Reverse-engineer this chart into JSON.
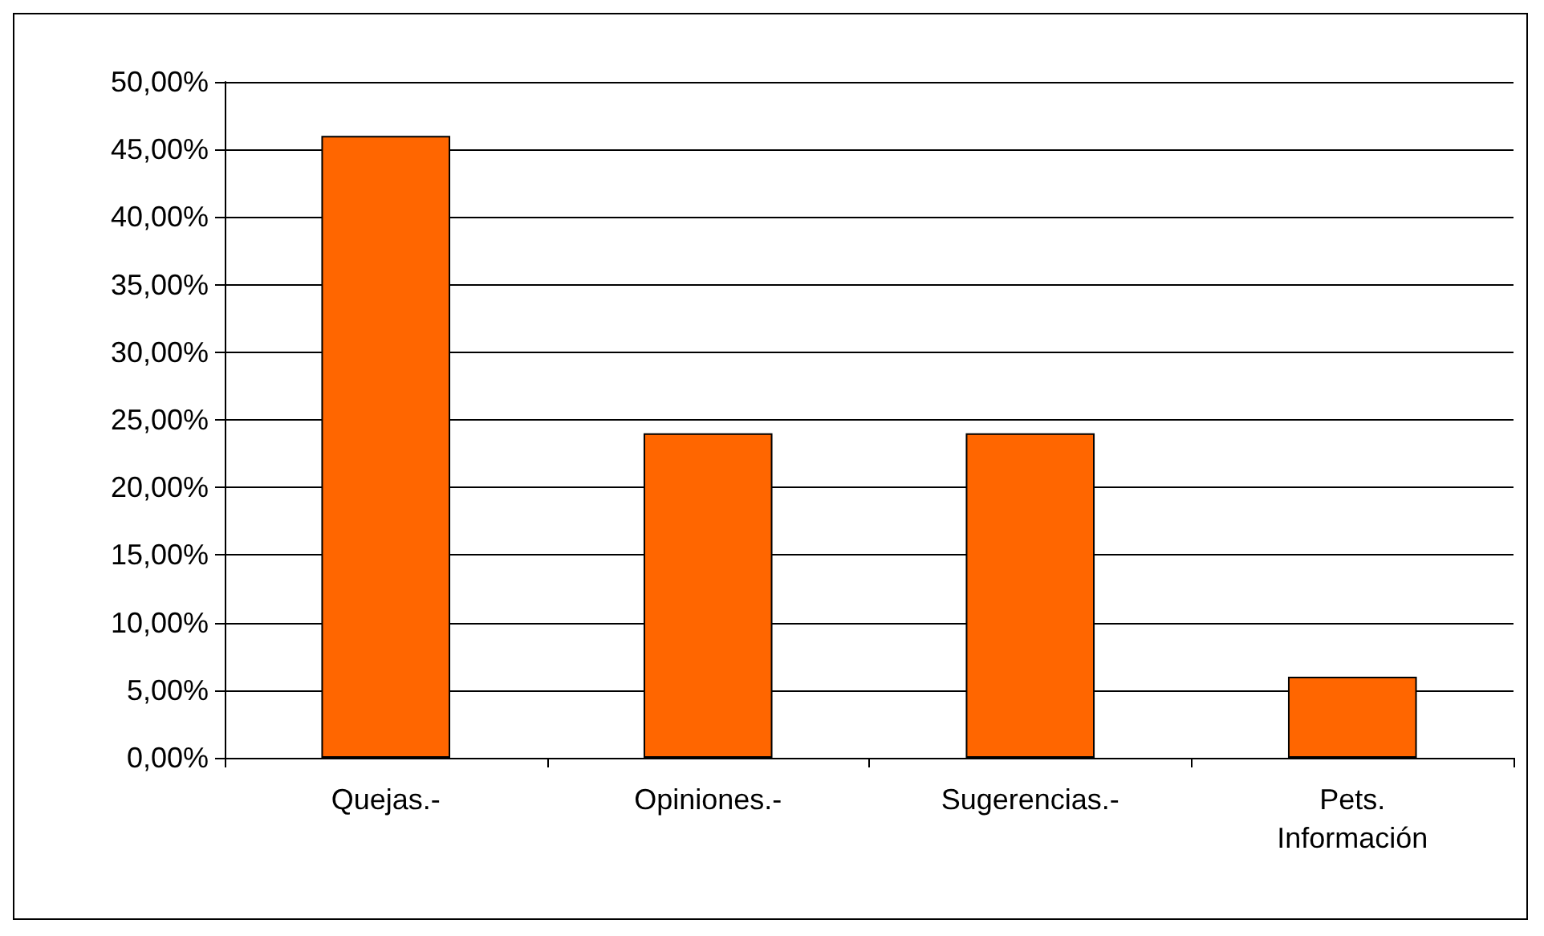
{
  "chart_data": {
    "type": "bar",
    "categories": [
      "Quejas.-",
      "Opiniones.-",
      "Sugerencias.-",
      "Pets.\nInformación"
    ],
    "values": [
      46,
      24,
      24,
      6
    ],
    "color": "#ff6600",
    "ylim": [
      0,
      50
    ],
    "yticks": [
      {
        "value": 0,
        "label": "0,00%"
      },
      {
        "value": 5,
        "label": "5,00%"
      },
      {
        "value": 10,
        "label": "10,00%"
      },
      {
        "value": 15,
        "label": "15,00%"
      },
      {
        "value": 20,
        "label": "20,00%"
      },
      {
        "value": 25,
        "label": "25,00%"
      },
      {
        "value": 30,
        "label": "30,00%"
      },
      {
        "value": 35,
        "label": "35,00%"
      },
      {
        "value": 40,
        "label": "40,00%"
      },
      {
        "value": 45,
        "label": "45,00%"
      },
      {
        "value": 50,
        "label": "50,00%"
      }
    ],
    "grid": "y"
  }
}
